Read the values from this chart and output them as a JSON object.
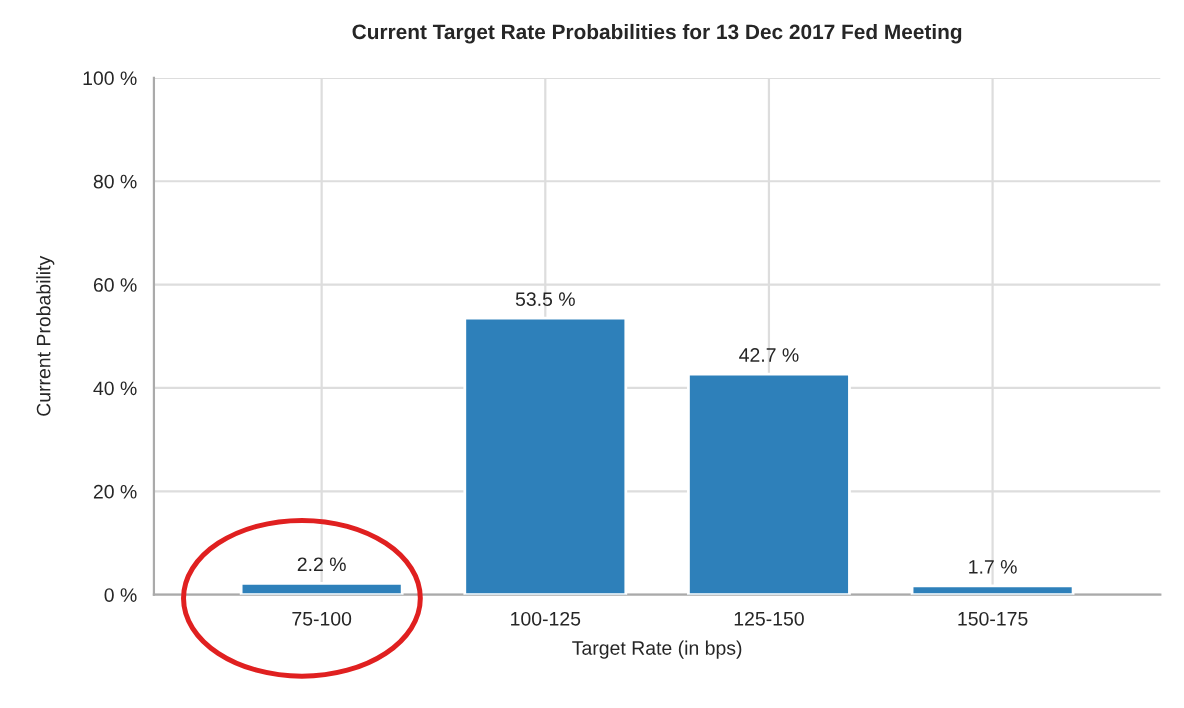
{
  "chart_data": {
    "type": "bar",
    "title": "Current Target Rate Probabilities for 13 Dec 2017 Fed Meeting",
    "xlabel": "Target Rate (in bps)",
    "ylabel": "Current Probability",
    "categories": [
      "75-100",
      "100-125",
      "125-150",
      "150-175"
    ],
    "values": [
      2.2,
      53.5,
      42.7,
      1.7
    ],
    "color": "#2e80ba",
    "value_labels": [
      "2.2 %",
      "53.5 %",
      "42.7 %",
      "1.7 %"
    ],
    "ylim": [
      0,
      100
    ],
    "yticks": [
      {
        "value": 0,
        "label": "0 %"
      },
      {
        "value": 20,
        "label": "20 %"
      },
      {
        "value": 40,
        "label": "40 %"
      },
      {
        "value": 60,
        "label": "60 %"
      },
      {
        "value": 80,
        "label": "80 %"
      },
      {
        "value": 100,
        "label": "100 %"
      }
    ],
    "grid": true
  }
}
